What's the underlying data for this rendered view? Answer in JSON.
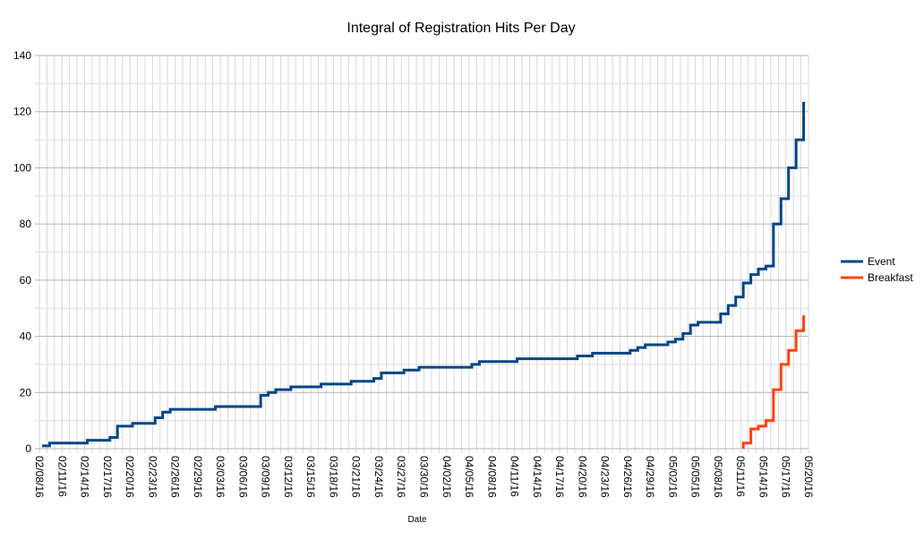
{
  "chart_data": {
    "type": "line",
    "title": "Integral of Registration Hits Per Day",
    "xlabel": "Date",
    "ylabel": "",
    "ylim": [
      0,
      140
    ],
    "yticks": [
      0,
      20,
      40,
      60,
      80,
      100,
      120,
      140
    ],
    "ytick_labels": [
      "0",
      "20",
      "40",
      "60",
      "80",
      "100",
      "120",
      "140"
    ],
    "grid": true,
    "legend_position": "right",
    "x_day_count": 102,
    "xtick_every_days": 3,
    "xtick_labels": [
      "02/08/16",
      "02/11/16",
      "02/14/16",
      "02/17/16",
      "02/20/16",
      "02/23/16",
      "02/26/16",
      "02/29/16",
      "03/03/16",
      "03/06/16",
      "03/09/16",
      "03/12/16",
      "03/15/16",
      "03/18/16",
      "03/21/16",
      "03/24/16",
      "03/27/16",
      "03/30/16",
      "04/02/16",
      "04/05/16",
      "04/08/16",
      "04/11/16",
      "04/14/16",
      "04/17/16",
      "04/20/16",
      "04/23/16",
      "04/26/16",
      "04/29/16",
      "05/02/16",
      "05/05/16",
      "05/08/16",
      "05/11/16",
      "05/14/16",
      "05/17/16",
      "05/20/16"
    ],
    "series": [
      {
        "name": "Event",
        "color": "#004586",
        "start_day_index": 0,
        "values": [
          1,
          2,
          2,
          2,
          2,
          2,
          3,
          3,
          3,
          4,
          8,
          8,
          9,
          9,
          9,
          11,
          13,
          14,
          14,
          14,
          14,
          14,
          14,
          15,
          15,
          15,
          15,
          15,
          15,
          19,
          20,
          21,
          21,
          22,
          22,
          22,
          22,
          23,
          23,
          23,
          23,
          24,
          24,
          24,
          25,
          27,
          27,
          27,
          28,
          28,
          29,
          29,
          29,
          29,
          29,
          29,
          29,
          30,
          31,
          31,
          31,
          31,
          31,
          32,
          32,
          32,
          32,
          32,
          32,
          32,
          32,
          33,
          33,
          34,
          34,
          34,
          34,
          34,
          35,
          36,
          37,
          37,
          37,
          38,
          39,
          41,
          44,
          45,
          45,
          45,
          48,
          51,
          54,
          59,
          62,
          64,
          65,
          80,
          89,
          100,
          110,
          123
        ]
      },
      {
        "name": "Breakfast",
        "color": "#ff420e",
        "start_day_index": 93,
        "values": [
          2,
          7,
          8,
          10,
          21,
          30,
          35,
          42,
          47
        ]
      }
    ]
  }
}
